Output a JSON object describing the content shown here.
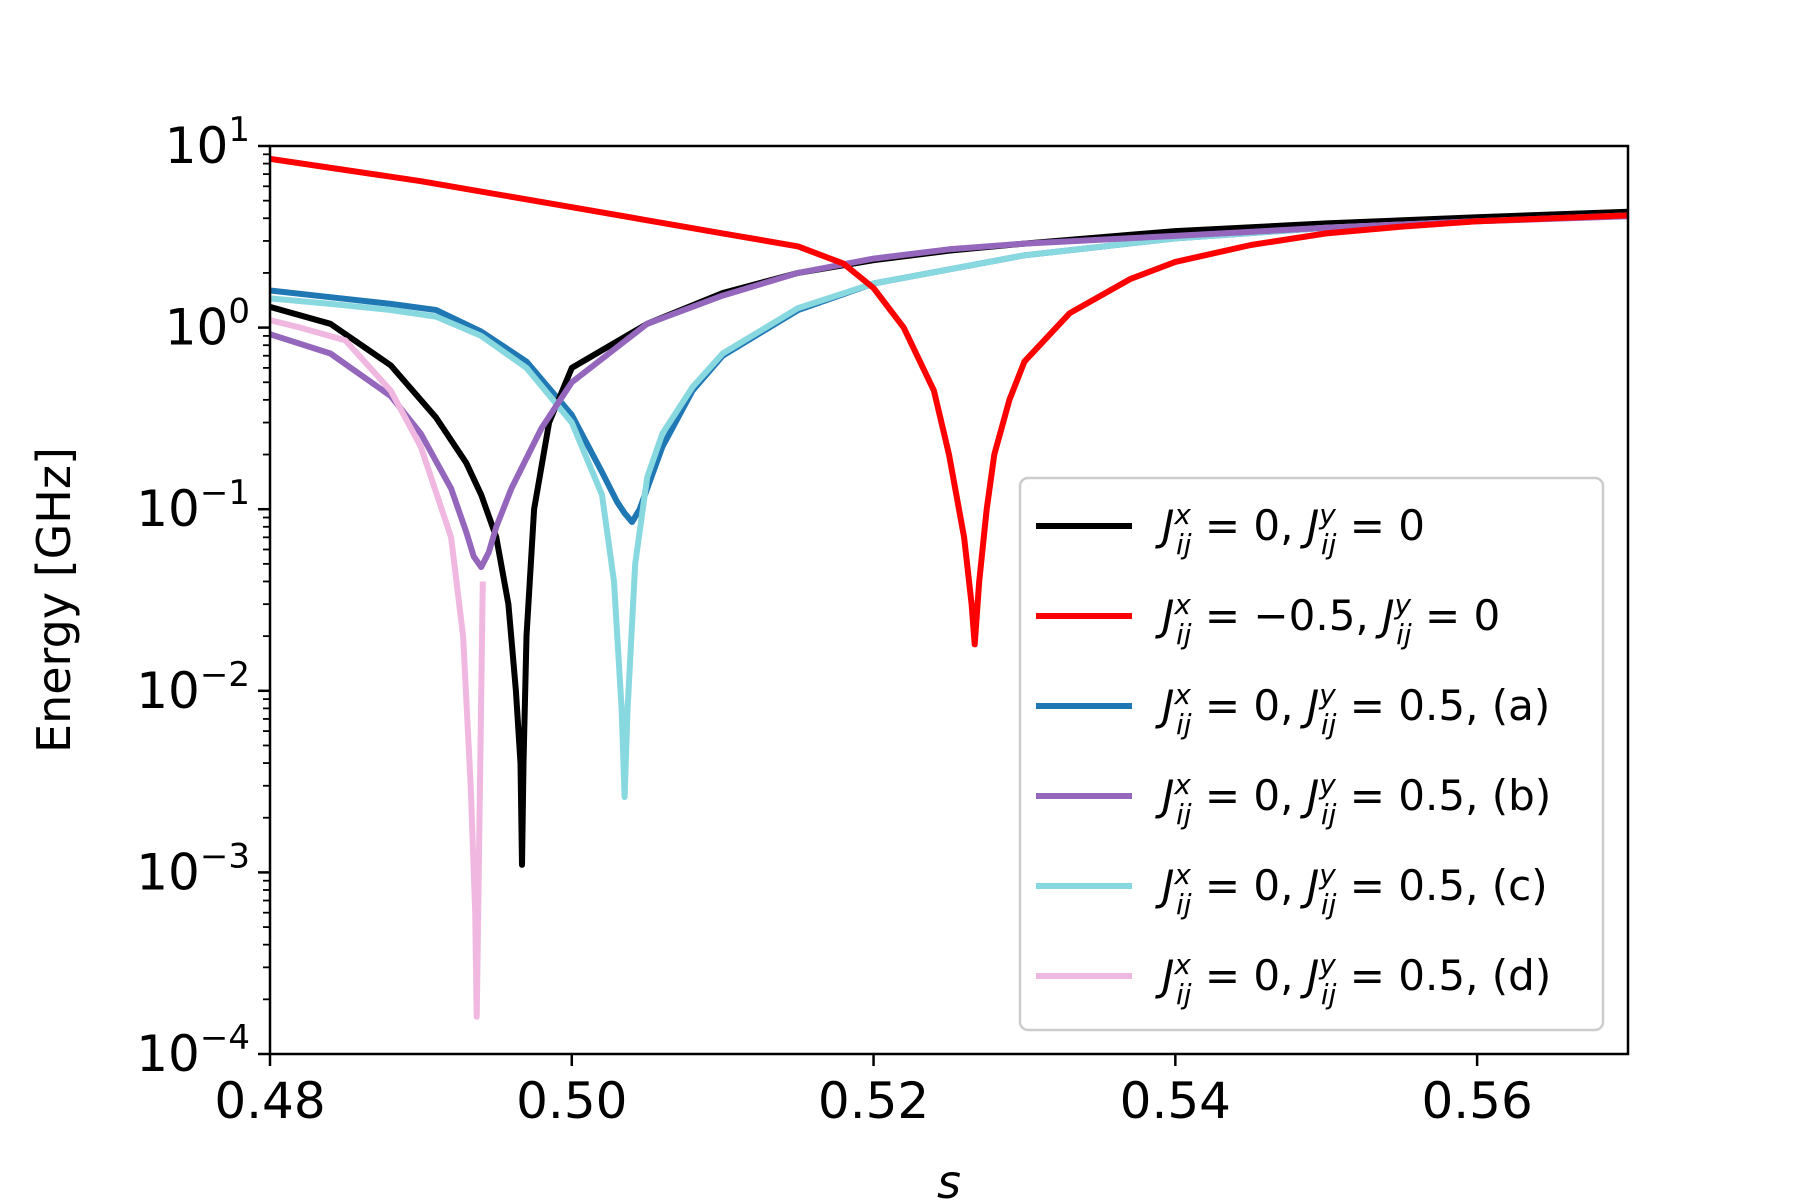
{
  "chart_data": {
    "type": "line",
    "title": "",
    "xlabel": "s",
    "ylabel": "Energy [GHz]",
    "xlim": [
      0.48,
      0.57
    ],
    "ylim": [
      0.0001,
      10
    ],
    "yscale": "log",
    "grid": false,
    "legend_position": "lower-right",
    "x_ticks": [
      0.48,
      0.5,
      0.52,
      0.54,
      0.56
    ],
    "x_tick_labels": [
      "0.48",
      "0.50",
      "0.52",
      "0.54",
      "0.56"
    ],
    "y_ticks": [
      {
        "value": 10,
        "base": "10",
        "exp": "1"
      },
      {
        "value": 1,
        "base": "10",
        "exp": "0"
      },
      {
        "value": 0.1,
        "base": "10",
        "exp": "−1"
      },
      {
        "value": 0.01,
        "base": "10",
        "exp": "−2"
      },
      {
        "value": 0.001,
        "base": "10",
        "exp": "−3"
      },
      {
        "value": 0.0001,
        "base": "10",
        "exp": "−4"
      }
    ],
    "series": [
      {
        "name": "J_ij^x = 0, J_ij^y = 0",
        "label_jx": "0",
        "label_jy": "0",
        "label_suffix": "",
        "color": "#000000",
        "x": [
          0.48,
          0.484,
          0.488,
          0.491,
          0.493,
          0.494,
          0.495,
          0.4958,
          0.4963,
          0.4966,
          0.4967,
          0.4968,
          0.497,
          0.4975,
          0.4985,
          0.5,
          0.505,
          0.51,
          0.515,
          0.52,
          0.525,
          0.53,
          0.54,
          0.55,
          0.56,
          0.57
        ],
        "y": [
          1.3,
          1.05,
          0.62,
          0.32,
          0.18,
          0.12,
          0.07,
          0.03,
          0.01,
          0.004,
          0.0011,
          0.004,
          0.02,
          0.1,
          0.3,
          0.6,
          1.05,
          1.55,
          2.0,
          2.35,
          2.65,
          2.9,
          3.4,
          3.75,
          4.05,
          4.35
        ]
      },
      {
        "name": "J_ij^x = −0.5, J_ij^y = 0",
        "label_jx": "−0.5",
        "label_jy": "0",
        "label_suffix": "",
        "color": "#ff0000",
        "x": [
          0.48,
          0.49,
          0.5,
          0.505,
          0.51,
          0.515,
          0.518,
          0.52,
          0.522,
          0.524,
          0.525,
          0.526,
          0.5265,
          0.5267,
          0.527,
          0.5275,
          0.528,
          0.529,
          0.53,
          0.533,
          0.537,
          0.54,
          0.545,
          0.55,
          0.555,
          0.56,
          0.565,
          0.57
        ],
        "y": [
          8.5,
          6.4,
          4.6,
          3.9,
          3.3,
          2.8,
          2.25,
          1.65,
          1.0,
          0.45,
          0.2,
          0.07,
          0.03,
          0.018,
          0.04,
          0.1,
          0.2,
          0.4,
          0.65,
          1.2,
          1.85,
          2.3,
          2.85,
          3.3,
          3.6,
          3.85,
          4.0,
          4.15
        ]
      },
      {
        "name": "J_ij^x = 0, J_ij^y = 0.5, (a)",
        "label_jx": "0",
        "label_jy": "0.5",
        "label_suffix": ", (a)",
        "color": "#1f77b4",
        "x": [
          0.48,
          0.484,
          0.488,
          0.491,
          0.494,
          0.497,
          0.5,
          0.502,
          0.503,
          0.5035,
          0.504,
          0.5045,
          0.505,
          0.506,
          0.508,
          0.51,
          0.515,
          0.52,
          0.53,
          0.54,
          0.55,
          0.56,
          0.57
        ],
        "y": [
          1.6,
          1.47,
          1.35,
          1.25,
          0.95,
          0.65,
          0.33,
          0.16,
          0.11,
          0.095,
          0.085,
          0.1,
          0.13,
          0.22,
          0.45,
          0.7,
          1.25,
          1.75,
          2.5,
          3.1,
          3.55,
          3.85,
          4.15
        ]
      },
      {
        "name": "J_ij^x = 0, J_ij^y = 0.5, (b)",
        "label_jx": "0",
        "label_jy": "0.5",
        "label_suffix": ", (b)",
        "color": "#9467bd",
        "x": [
          0.48,
          0.484,
          0.488,
          0.49,
          0.492,
          0.493,
          0.4935,
          0.494,
          0.4945,
          0.495,
          0.496,
          0.498,
          0.5,
          0.505,
          0.51,
          0.515,
          0.52,
          0.525,
          0.53,
          0.54,
          0.55,
          0.56,
          0.57
        ],
        "y": [
          0.92,
          0.72,
          0.42,
          0.26,
          0.13,
          0.075,
          0.055,
          0.048,
          0.058,
          0.08,
          0.13,
          0.28,
          0.5,
          1.05,
          1.5,
          2.0,
          2.4,
          2.7,
          2.9,
          3.2,
          3.55,
          3.85,
          4.1
        ]
      },
      {
        "name": "J_ij^x = 0, J_ij^y = 0.5, (c)",
        "label_jx": "0",
        "label_jy": "0.5",
        "label_suffix": ", (c)",
        "color": "#88d8e0",
        "x": [
          0.48,
          0.484,
          0.488,
          0.491,
          0.494,
          0.497,
          0.5,
          0.502,
          0.5028,
          0.5033,
          0.5035,
          0.5037,
          0.5042,
          0.505,
          0.506,
          0.508,
          0.51,
          0.515,
          0.52,
          0.53,
          0.54,
          0.55,
          0.56,
          0.57
        ],
        "y": [
          1.45,
          1.35,
          1.25,
          1.15,
          0.9,
          0.6,
          0.3,
          0.12,
          0.04,
          0.008,
          0.0026,
          0.008,
          0.05,
          0.15,
          0.26,
          0.47,
          0.72,
          1.28,
          1.75,
          2.5,
          3.1,
          3.55,
          3.85,
          4.15
        ]
      },
      {
        "name": "J_ij^x = 0, J_ij^y = 0.5, (d)",
        "label_jx": "0",
        "label_jy": "0.5",
        "label_suffix": ", (d)",
        "color": "#f0b8e0",
        "x": [
          0.48,
          0.482,
          0.485,
          0.488,
          0.49,
          0.492,
          0.4928,
          0.4933,
          0.4936,
          0.4937,
          0.4938,
          0.4941
        ],
        "y": [
          1.1,
          1.0,
          0.85,
          0.45,
          0.22,
          0.07,
          0.02,
          0.003,
          0.0006,
          0.00016,
          0.0006,
          0.04
        ]
      }
    ]
  }
}
